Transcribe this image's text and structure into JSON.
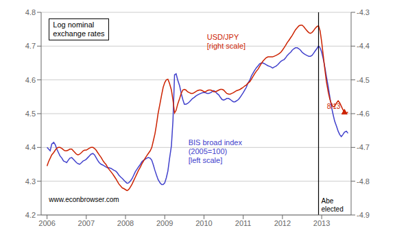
{
  "chart_data": {
    "type": "line",
    "title": "Log nominal\nexchange rates",
    "x": [
      2006.0,
      2006.04,
      2006.08,
      2006.12,
      2006.17,
      2006.21,
      2006.25,
      2006.29,
      2006.33,
      2006.38,
      2006.42,
      2006.46,
      2006.5,
      2006.54,
      2006.58,
      2006.63,
      2006.67,
      2006.71,
      2006.75,
      2006.79,
      2006.83,
      2006.88,
      2006.92,
      2006.96,
      2007.0,
      2007.04,
      2007.08,
      2007.12,
      2007.17,
      2007.21,
      2007.25,
      2007.29,
      2007.33,
      2007.38,
      2007.42,
      2007.46,
      2007.5,
      2007.54,
      2007.58,
      2007.63,
      2007.67,
      2007.71,
      2007.75,
      2007.79,
      2007.83,
      2007.88,
      2007.92,
      2007.96,
      2008.0,
      2008.04,
      2008.08,
      2008.12,
      2008.17,
      2008.21,
      2008.25,
      2008.29,
      2008.33,
      2008.38,
      2008.42,
      2008.46,
      2008.5,
      2008.54,
      2008.58,
      2008.63,
      2008.67,
      2008.71,
      2008.75,
      2008.79,
      2008.83,
      2008.88,
      2008.92,
      2008.96,
      2009.0,
      2009.04,
      2009.08,
      2009.12,
      2009.17,
      2009.21,
      2009.25,
      2009.29,
      2009.33,
      2009.38,
      2009.42,
      2009.46,
      2009.5,
      2009.54,
      2009.58,
      2009.63,
      2009.67,
      2009.71,
      2009.75,
      2009.79,
      2009.83,
      2009.88,
      2009.92,
      2009.96,
      2010.0,
      2010.04,
      2010.08,
      2010.12,
      2010.17,
      2010.21,
      2010.25,
      2010.29,
      2010.33,
      2010.38,
      2010.42,
      2010.46,
      2010.5,
      2010.54,
      2010.58,
      2010.63,
      2010.67,
      2010.71,
      2010.75,
      2010.79,
      2010.83,
      2010.88,
      2010.92,
      2010.96,
      2011.0,
      2011.04,
      2011.08,
      2011.12,
      2011.17,
      2011.21,
      2011.25,
      2011.29,
      2011.33,
      2011.38,
      2011.42,
      2011.46,
      2011.5,
      2011.54,
      2011.58,
      2011.63,
      2011.67,
      2011.71,
      2011.75,
      2011.79,
      2011.83,
      2011.88,
      2011.92,
      2011.96,
      2012.0,
      2012.04,
      2012.08,
      2012.12,
      2012.17,
      2012.21,
      2012.25,
      2012.29,
      2012.33,
      2012.38,
      2012.42,
      2012.46,
      2012.5,
      2012.54,
      2012.58,
      2012.63,
      2012.67,
      2012.71,
      2012.75,
      2012.79,
      2012.83,
      2012.88,
      2012.92,
      2012.96,
      2013.0,
      2013.04,
      2013.08,
      2013.12,
      2013.17,
      2013.21,
      2013.25,
      2013.29,
      2013.33,
      2013.38,
      2013.42,
      2013.46,
      2013.5,
      2013.54,
      2013.58,
      2013.63,
      2013.67
    ],
    "xlim": [
      2005.85,
      2013.75
    ],
    "xticks": [
      2006,
      2007,
      2008,
      2009,
      2010,
      2011,
      2012,
      2013
    ],
    "ylim": [
      4.2,
      4.8
    ],
    "yticks": [
      4.2,
      4.3,
      4.4,
      4.5,
      4.6,
      4.7,
      4.8
    ],
    "y2lim": [
      -4.9,
      -4.3
    ],
    "y2ticks": [
      -4.9,
      -4.8,
      -4.7,
      -4.6,
      -4.5,
      -4.4,
      -4.3
    ],
    "grid": true,
    "series": [
      {
        "name": "BIS broad index\n(2005=100)\n[left scale]",
        "color": "#4040cc",
        "values": [
          4.4,
          4.395,
          4.39,
          4.41,
          4.415,
          4.408,
          4.395,
          4.385,
          4.375,
          4.368,
          4.36,
          4.358,
          4.355,
          4.362,
          4.368,
          4.37,
          4.365,
          4.36,
          4.355,
          4.352,
          4.35,
          4.355,
          4.36,
          4.362,
          4.365,
          4.37,
          4.375,
          4.38,
          4.382,
          4.378,
          4.37,
          4.362,
          4.355,
          4.35,
          4.348,
          4.345,
          4.342,
          4.34,
          4.34,
          4.338,
          4.335,
          4.332,
          4.33,
          4.325,
          4.318,
          4.312,
          4.308,
          4.303,
          4.298,
          4.294,
          4.295,
          4.3,
          4.308,
          4.318,
          4.328,
          4.335,
          4.342,
          4.35,
          4.358,
          4.362,
          4.365,
          4.368,
          4.37,
          4.368,
          4.362,
          4.348,
          4.332,
          4.318,
          4.305,
          4.295,
          4.29,
          4.29,
          4.295,
          4.31,
          4.33,
          4.365,
          4.405,
          4.48,
          4.615,
          4.618,
          4.6,
          4.582,
          4.56,
          4.542,
          4.528,
          4.528,
          4.53,
          4.535,
          4.54,
          4.545,
          4.548,
          4.552,
          4.555,
          4.558,
          4.56,
          4.562,
          4.563,
          4.562,
          4.56,
          4.56,
          4.562,
          4.565,
          4.568,
          4.565,
          4.56,
          4.555,
          4.548,
          4.542,
          4.54,
          4.542,
          4.545,
          4.545,
          4.542,
          4.538,
          4.535,
          4.535,
          4.538,
          4.542,
          4.548,
          4.555,
          4.562,
          4.57,
          4.578,
          4.59,
          4.6,
          4.612,
          4.62,
          4.628,
          4.635,
          4.642,
          4.648,
          4.65,
          4.65,
          4.648,
          4.645,
          4.642,
          4.64,
          4.638,
          4.635,
          4.638,
          4.64,
          4.645,
          4.65,
          4.655,
          4.658,
          4.66,
          4.665,
          4.672,
          4.678,
          4.682,
          4.688,
          4.692,
          4.695,
          4.695,
          4.692,
          4.688,
          4.682,
          4.678,
          4.675,
          4.672,
          4.67,
          4.67,
          4.672,
          4.678,
          4.685,
          4.693,
          4.7,
          4.695,
          4.682,
          4.662,
          4.638,
          4.61,
          4.578,
          4.548,
          4.52,
          4.498,
          4.478,
          4.462,
          4.448,
          4.438,
          4.432,
          4.438,
          4.445,
          4.448,
          4.442
        ]
      },
      {
        "name": "USD/JPY\n[right scale]",
        "color": "#cc2200",
        "axis": "y2",
        "values": [
          -4.755,
          -4.742,
          -4.732,
          -4.722,
          -4.715,
          -4.708,
          -4.702,
          -4.7,
          -4.7,
          -4.703,
          -4.707,
          -4.71,
          -4.71,
          -4.708,
          -4.705,
          -4.705,
          -4.71,
          -4.715,
          -4.72,
          -4.722,
          -4.72,
          -4.715,
          -4.71,
          -4.708,
          -4.708,
          -4.705,
          -4.702,
          -4.7,
          -4.7,
          -4.703,
          -4.708,
          -4.715,
          -4.722,
          -4.73,
          -4.738,
          -4.745,
          -4.75,
          -4.758,
          -4.765,
          -4.772,
          -4.778,
          -4.785,
          -4.792,
          -4.8,
          -4.808,
          -4.815,
          -4.82,
          -4.822,
          -4.825,
          -4.828,
          -4.825,
          -4.818,
          -4.808,
          -4.798,
          -4.788,
          -4.778,
          -4.768,
          -4.758,
          -4.748,
          -4.74,
          -4.732,
          -4.725,
          -4.718,
          -4.71,
          -4.7,
          -4.68,
          -4.66,
          -4.632,
          -4.6,
          -4.57,
          -4.545,
          -4.522,
          -4.508,
          -4.5,
          -4.498,
          -4.51,
          -4.53,
          -4.56,
          -4.598,
          -4.59,
          -4.572,
          -4.555,
          -4.54,
          -4.53,
          -4.528,
          -4.53,
          -4.535,
          -4.538,
          -4.54,
          -4.54,
          -4.538,
          -4.535,
          -4.532,
          -4.53,
          -4.53,
          -4.532,
          -4.535,
          -4.535,
          -4.532,
          -4.53,
          -4.53,
          -4.532,
          -4.535,
          -4.535,
          -4.533,
          -4.53,
          -4.528,
          -4.528,
          -4.53,
          -4.535,
          -4.54,
          -4.542,
          -4.542,
          -4.54,
          -4.538,
          -4.535,
          -4.532,
          -4.53,
          -4.528,
          -4.525,
          -4.522,
          -4.518,
          -4.515,
          -4.51,
          -4.505,
          -4.498,
          -4.49,
          -4.482,
          -4.475,
          -4.468,
          -4.46,
          -4.452,
          -4.445,
          -4.44,
          -4.435,
          -4.432,
          -4.432,
          -4.432,
          -4.432,
          -4.43,
          -4.428,
          -4.425,
          -4.422,
          -4.418,
          -4.412,
          -4.405,
          -4.398,
          -4.39,
          -4.382,
          -4.375,
          -4.368,
          -4.36,
          -4.352,
          -4.345,
          -4.34,
          -4.338,
          -4.338,
          -4.342,
          -4.348,
          -4.355,
          -4.36,
          -4.362,
          -4.36,
          -4.355,
          -4.348,
          -4.342,
          -4.34,
          -4.355,
          -4.388,
          -4.428,
          -4.468,
          -4.505,
          -4.538,
          -4.558,
          -4.572,
          -4.58,
          -4.578,
          -4.568,
          -4.562,
          -4.568,
          -4.578,
          -4.588,
          -4.595,
          -4.598,
          -4.595
        ]
      }
    ],
    "annotations": [
      {
        "type": "vline",
        "x": 2012.92,
        "text": "Abe\nelected"
      },
      {
        "type": "marker",
        "marker": "triangle",
        "x": 2013.58,
        "y": -4.595,
        "axis": "y2",
        "text": "8/13",
        "color": "#cc2200"
      },
      {
        "text": "www.econbrowser.com"
      }
    ]
  }
}
